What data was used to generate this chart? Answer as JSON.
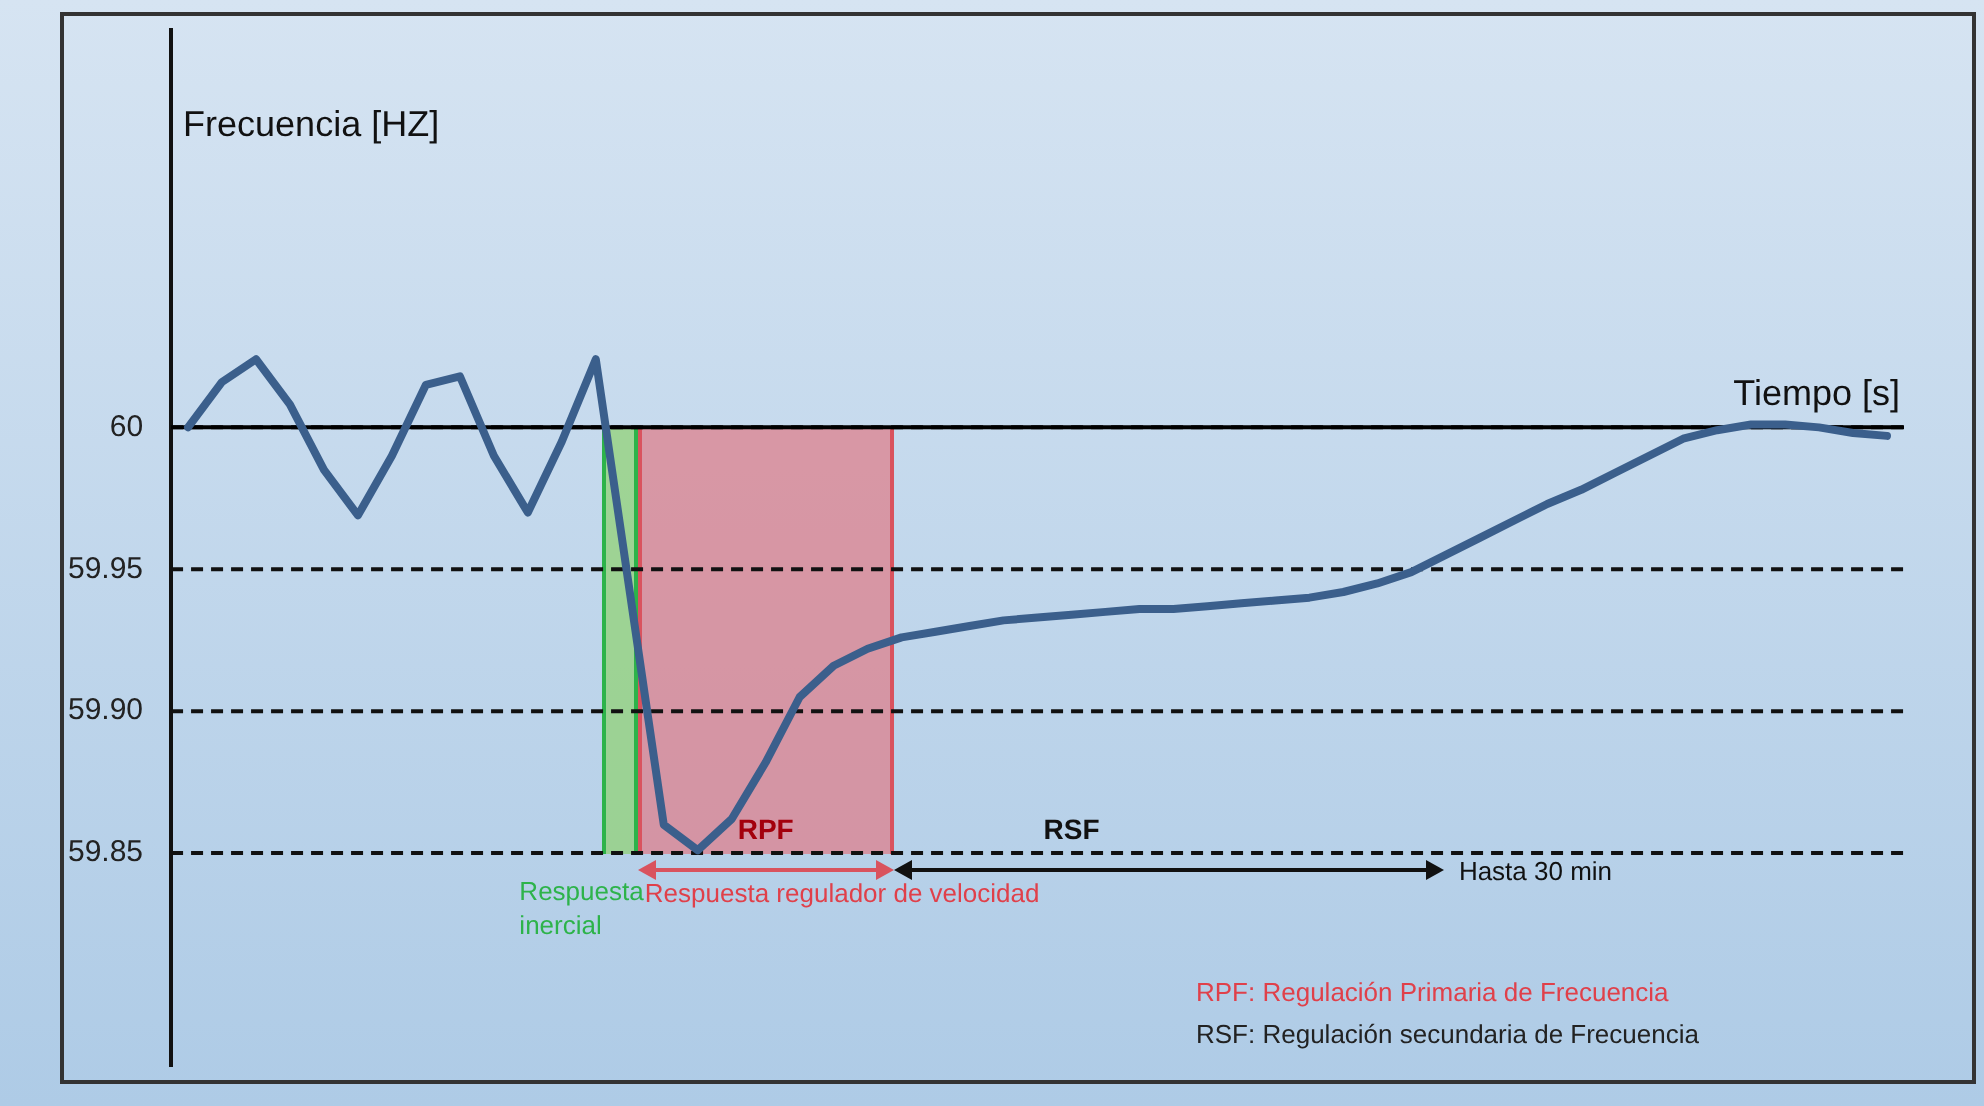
{
  "chart_data": {
    "type": "line",
    "ylabel": "Frecuencia [HZ]",
    "xlabel": "Tiempo [s]",
    "categories": [
      null,
      null,
      null,
      null,
      null,
      null,
      null,
      null,
      null,
      null,
      null,
      null,
      null,
      null,
      null,
      null,
      null,
      null,
      null,
      null,
      null,
      null,
      null,
      null,
      null,
      null,
      null,
      null,
      null,
      null,
      null,
      null,
      null,
      null,
      null,
      null,
      null,
      null,
      null,
      null,
      null,
      null,
      null,
      null,
      null,
      null,
      null,
      null,
      null,
      null,
      null
    ],
    "series": [
      {
        "color": "#3b5f8c",
        "values": [
          60,
          60.016,
          60.024,
          60.008,
          59.985,
          59.969,
          59.99,
          60.015,
          60.018,
          59.99,
          59.97,
          59.995,
          60.024,
          59.942,
          59.86,
          59.851,
          59.862,
          59.882,
          59.905,
          59.916,
          59.922,
          59.926,
          59.928,
          59.93,
          59.932,
          59.933,
          59.934,
          59.935,
          59.936,
          59.936,
          59.937,
          59.938,
          59.939,
          59.94,
          59.942,
          59.945,
          59.949,
          59.955,
          59.961,
          59.967,
          59.973,
          59.978,
          59.984,
          59.99,
          59.996,
          59.999,
          60.001,
          60.001,
          60,
          59.998,
          59.997
        ]
      }
    ],
    "ylim": [
      59.775,
      60.14
    ],
    "yticks": [
      59.85,
      {
        "value": 59.9,
        "label": "59.90"
      },
      59.95,
      60
    ],
    "tick_labels": "y",
    "grid": "y",
    "line_style": "solid",
    "marker": "none",
    "legend": false,
    "ref_lines": [
      {
        "axis": "y",
        "value": 60,
        "color": "#000000",
        "line_style": "solid"
      }
    ],
    "annotations": [
      "Respuesta inercial",
      "RPF",
      "Respuesta regulador de velocidad",
      "RSF",
      "Hasta 30 min",
      "RPF: Regulación Primaria de Frecuencia",
      "RSF: Regulación secundaria de Frecuencia"
    ]
  }
}
